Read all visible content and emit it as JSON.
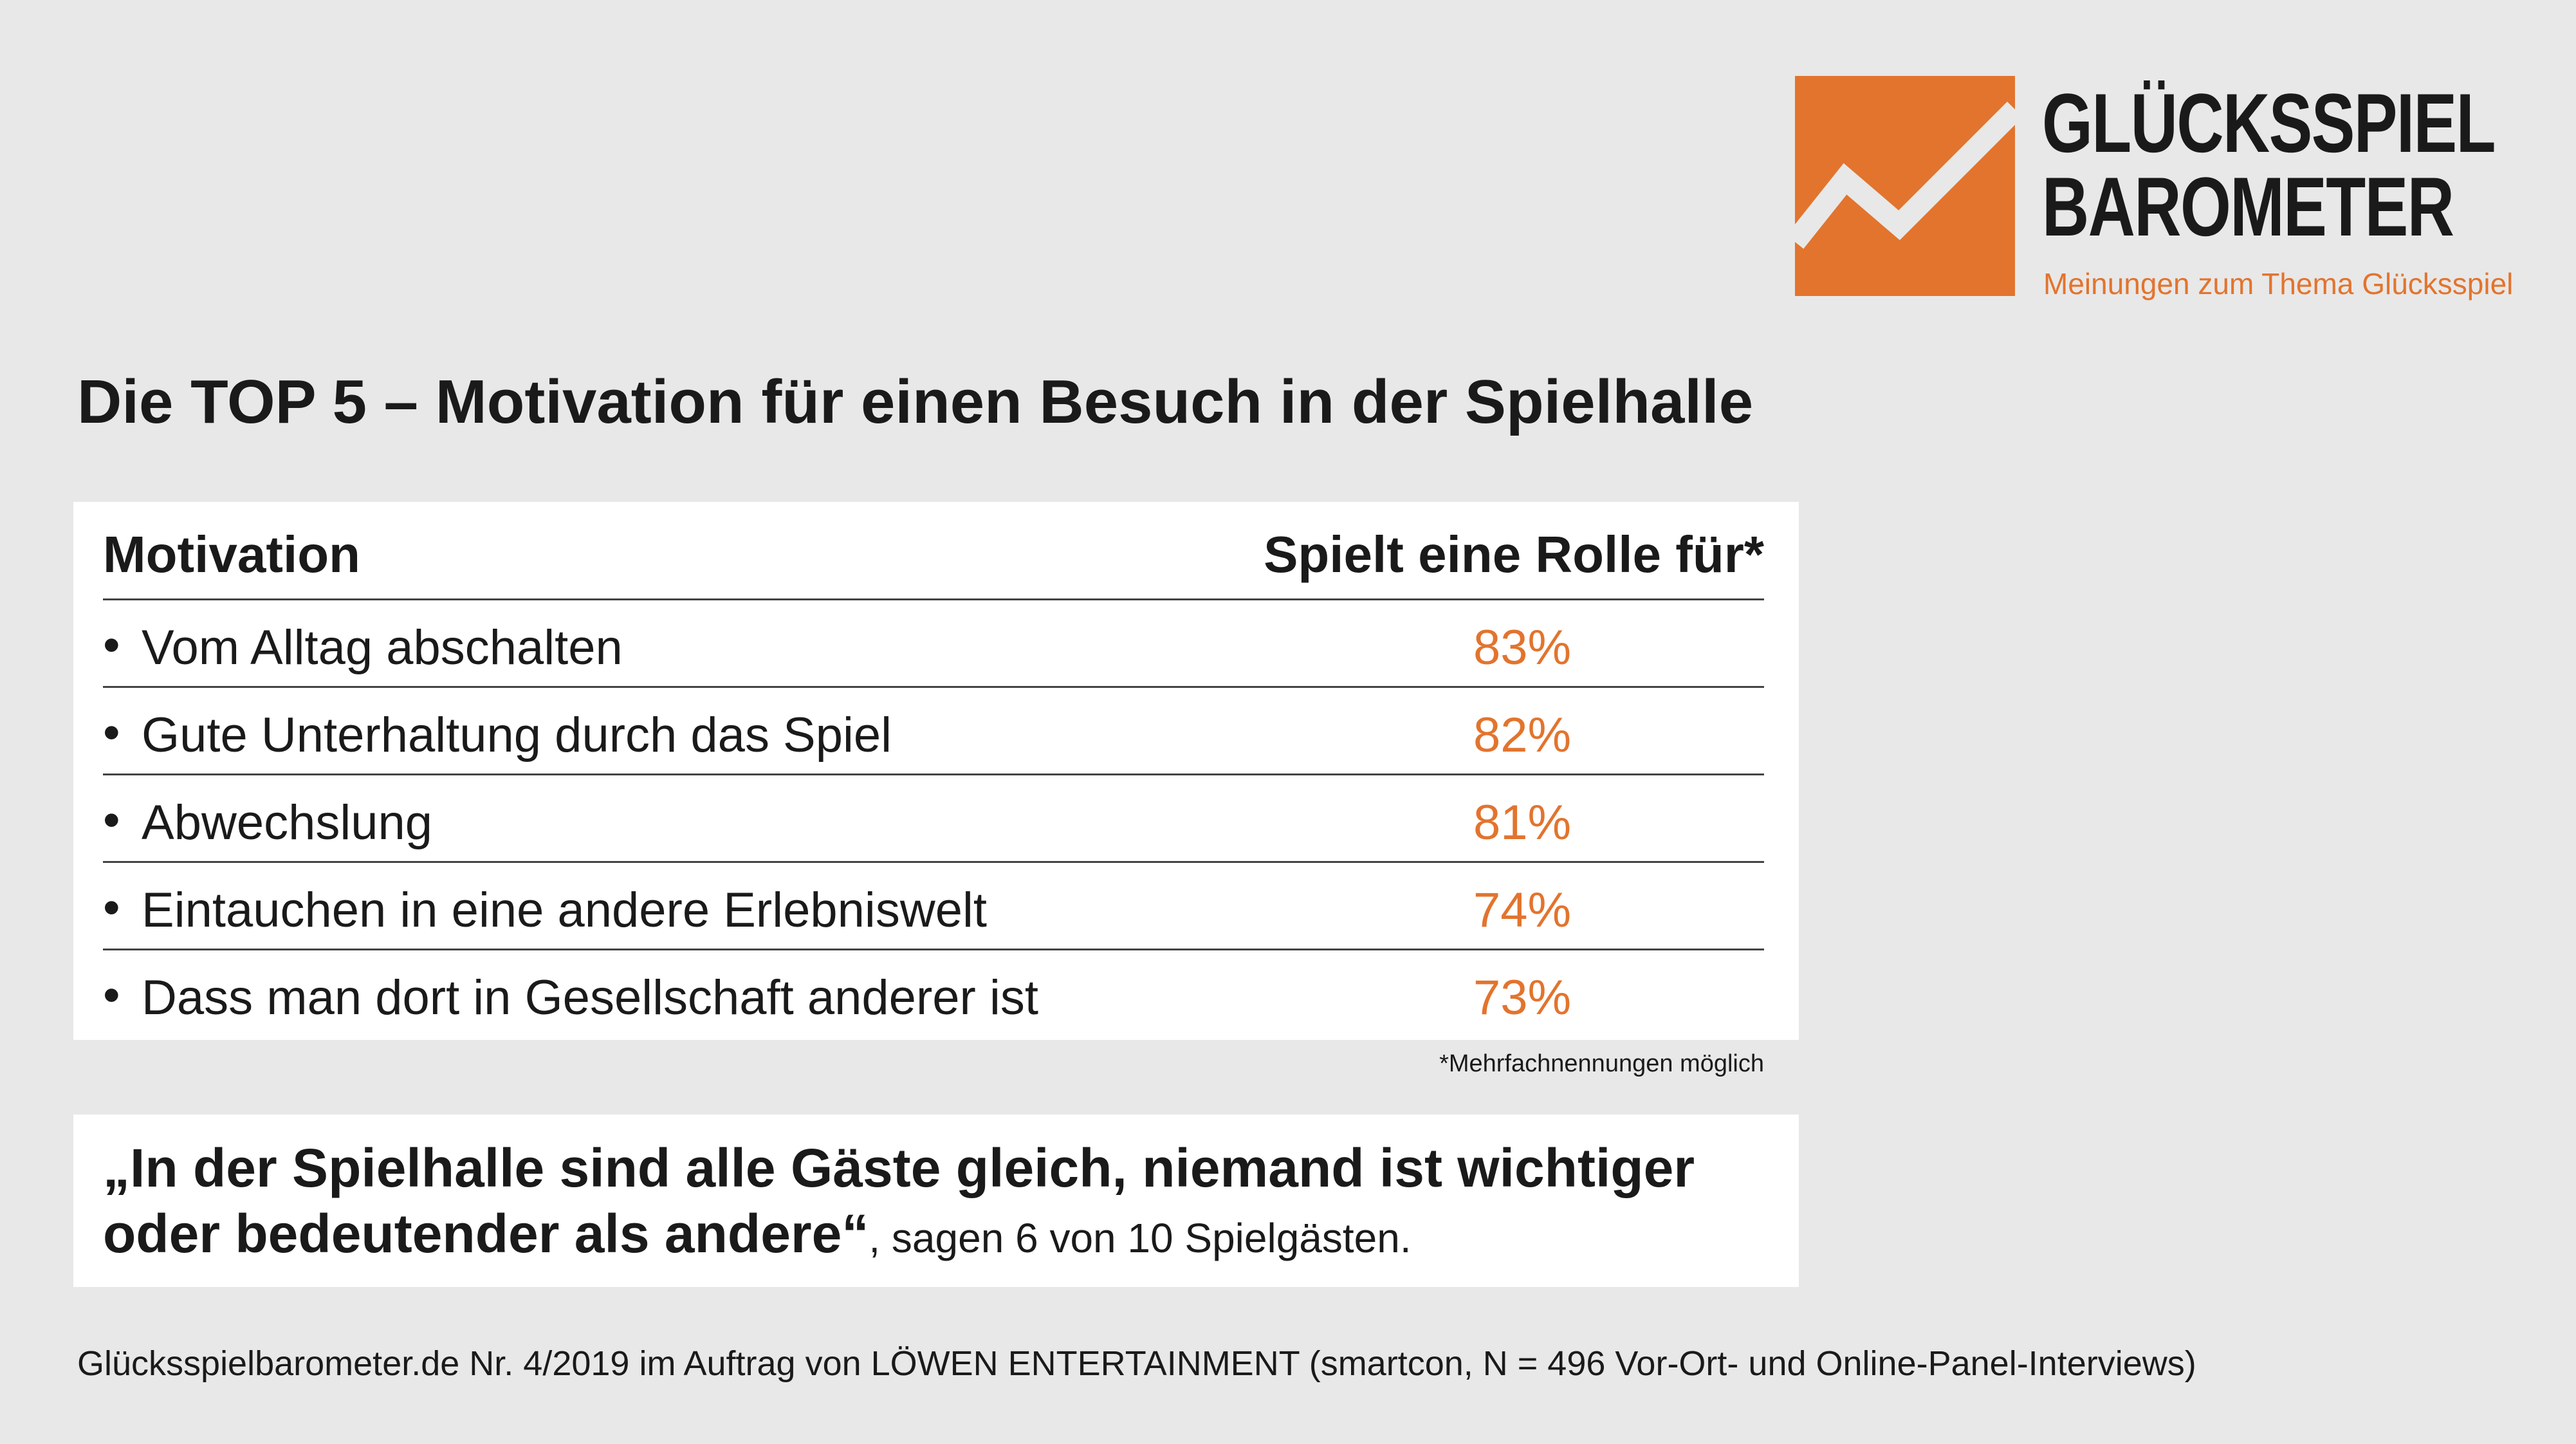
{
  "logo": {
    "line1": "GLÜCKSSPIEL",
    "line2": "BAROMETER",
    "tagline": "Meinungen zum Thema Glücksspiel",
    "accent_color": "#e2742e"
  },
  "title": "Die TOP 5 – Motivation für einen Besuch in der Spielhalle",
  "chart_data": {
    "type": "table",
    "columns": [
      "Motivation",
      "Spielt eine Rolle für*"
    ],
    "rows": [
      {
        "label": "Vom Alltag abschalten",
        "value": "83%"
      },
      {
        "label": "Gute Unterhaltung durch das Spiel",
        "value": "82%"
      },
      {
        "label": "Abwechslung",
        "value": "81%"
      },
      {
        "label": "Eintauchen in eine andere Erlebniswelt",
        "value": "74%"
      },
      {
        "label": "Dass man dort in Gesellschaft anderer ist",
        "value": "73%"
      }
    ],
    "values": [
      83,
      82,
      81,
      74,
      73
    ],
    "value_color": "#e2742e",
    "footnote": "*Mehrfachnennungen möglich"
  },
  "quote": {
    "text": "„In der Spielhalle sind alle Gäste gleich, niemand ist wichtiger oder bedeutender als andere“",
    "attribution": ", sagen 6 von 10 Spielgästen."
  },
  "source": "Glücksspielbarometer.de Nr. 4/2019 im Auftrag von LÖWEN ENTERTAINMENT (smartcon, N = 496 Vor-Ort- und Online-Panel-Interviews)"
}
